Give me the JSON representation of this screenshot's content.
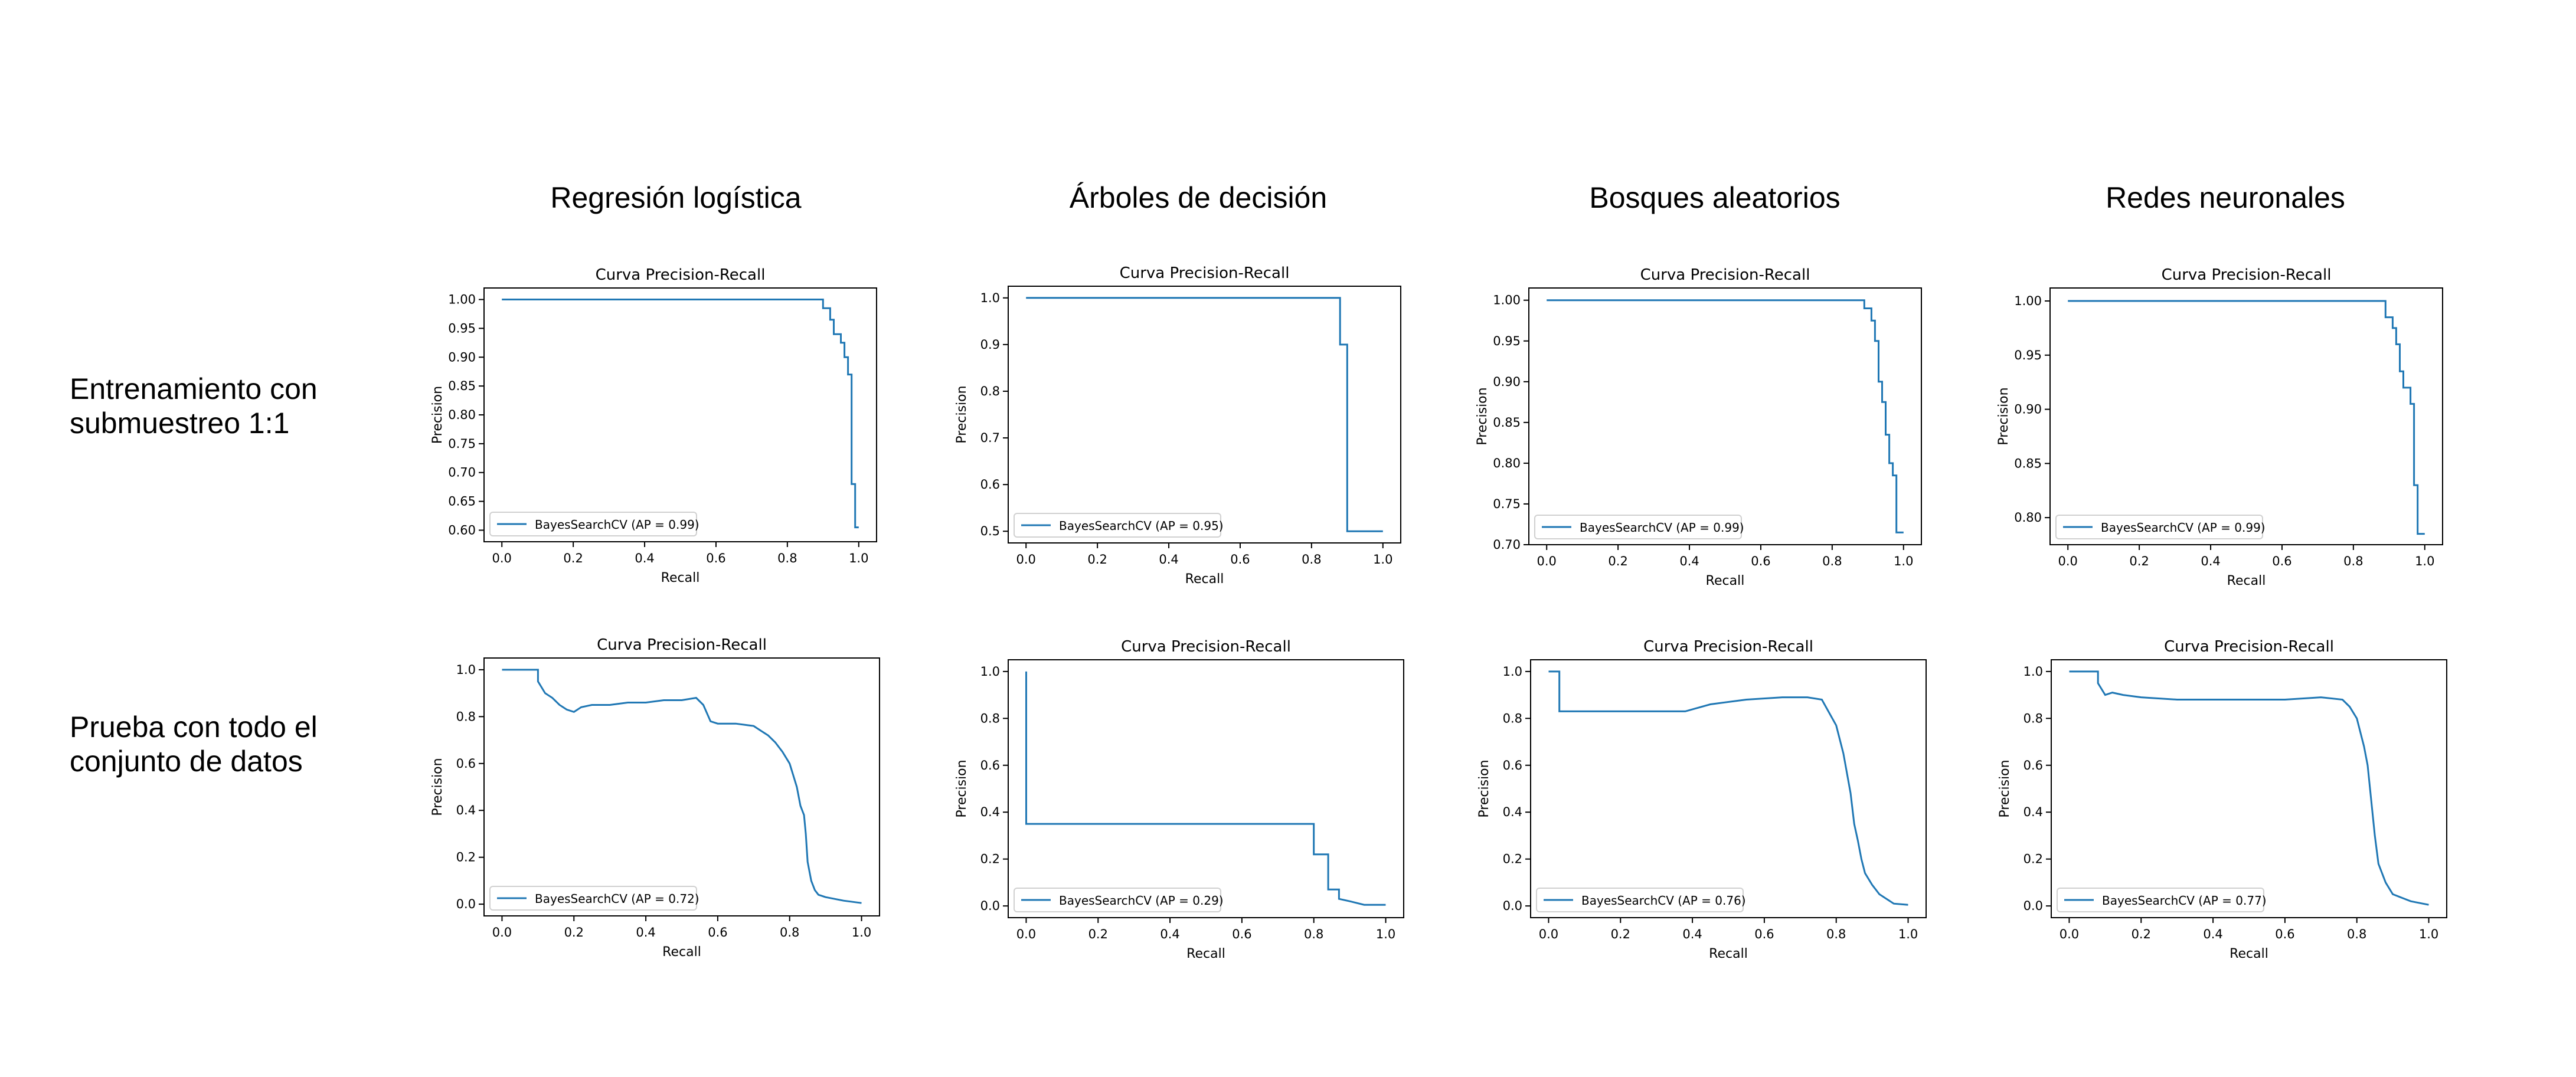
{
  "column_titles": [
    "Regresión logística",
    "Árboles de decisión",
    "Bosques aleatorios",
    "Redes neuronales"
  ],
  "row_labels": [
    "Entrenamiento con\nsubmuestreo 1:1",
    "Prueba con todo el\nconjunto de datos"
  ],
  "colors": {
    "series": "#1f77b4"
  },
  "chart_data": [
    {
      "type": "line",
      "title": "Curva Precision-Recall",
      "xlabel": "Recall",
      "ylabel": "Precision",
      "xlim": [
        -0.05,
        1.05
      ],
      "ylim": [
        0.58,
        1.02
      ],
      "xticks": [
        "0.0",
        "0.2",
        "0.4",
        "0.6",
        "0.8",
        "1.0"
      ],
      "yticks": [
        "0.60",
        "0.65",
        "0.70",
        "0.75",
        "0.80",
        "0.85",
        "0.90",
        "0.95",
        "1.00"
      ],
      "legend_position": "lower-left",
      "grid": false,
      "series": [
        {
          "name": "BayesSearchCV (AP = 0.99)",
          "x": [
            0,
            0.9,
            0.9,
            0.92,
            0.92,
            0.93,
            0.93,
            0.95,
            0.95,
            0.96,
            0.96,
            0.97,
            0.97,
            0.98,
            0.98,
            0.99,
            0.99,
            1.0
          ],
          "y": [
            1.0,
            1.0,
            0.985,
            0.985,
            0.965,
            0.965,
            0.94,
            0.94,
            0.925,
            0.925,
            0.9,
            0.9,
            0.87,
            0.87,
            0.68,
            0.68,
            0.605,
            0.605
          ]
        }
      ]
    },
    {
      "type": "line",
      "title": "Curva Precision-Recall",
      "xlabel": "Recall",
      "ylabel": "Precision",
      "xlim": [
        -0.05,
        1.05
      ],
      "ylim": [
        0.475,
        1.025
      ],
      "xticks": [
        "0.0",
        "0.2",
        "0.4",
        "0.6",
        "0.8",
        "1.0"
      ],
      "yticks": [
        "0.5",
        "0.6",
        "0.7",
        "0.8",
        "0.9",
        "1.0"
      ],
      "legend_position": "lower-left",
      "grid": false,
      "series": [
        {
          "name": "BayesSearchCV (AP = 0.95)",
          "x": [
            0,
            0.88,
            0.88,
            0.9,
            0.9,
            1.0
          ],
          "y": [
            1.0,
            1.0,
            0.9,
            0.9,
            0.5,
            0.5
          ]
        }
      ]
    },
    {
      "type": "line",
      "title": "Curva Precision-Recall",
      "xlabel": "Recall",
      "ylabel": "Precision",
      "xlim": [
        -0.05,
        1.05
      ],
      "ylim": [
        0.7,
        1.015
      ],
      "xticks": [
        "0.0",
        "0.2",
        "0.4",
        "0.6",
        "0.8",
        "1.0"
      ],
      "yticks": [
        "0.70",
        "0.75",
        "0.80",
        "0.85",
        "0.90",
        "0.95",
        "1.00"
      ],
      "legend_position": "lower-left",
      "grid": false,
      "series": [
        {
          "name": "BayesSearchCV (AP = 0.99)",
          "x": [
            0,
            0.89,
            0.89,
            0.91,
            0.91,
            0.92,
            0.92,
            0.93,
            0.93,
            0.94,
            0.94,
            0.95,
            0.95,
            0.96,
            0.96,
            0.97,
            0.97,
            0.98,
            0.98,
            0.99,
            0.99,
            1.0
          ],
          "y": [
            1.0,
            1.0,
            0.99,
            0.99,
            0.975,
            0.975,
            0.95,
            0.95,
            0.9,
            0.9,
            0.875,
            0.875,
            0.835,
            0.835,
            0.8,
            0.8,
            0.785,
            0.785,
            0.715,
            0.715,
            0.715,
            0.715
          ]
        }
      ]
    },
    {
      "type": "line",
      "title": "Curva Precision-Recall",
      "xlabel": "Recall",
      "ylabel": "Precision",
      "xlim": [
        -0.05,
        1.05
      ],
      "ylim": [
        0.775,
        1.012
      ],
      "xticks": [
        "0.0",
        "0.2",
        "0.4",
        "0.6",
        "0.8",
        "1.0"
      ],
      "yticks": [
        "0.80",
        "0.85",
        "0.90",
        "0.95",
        "1.00"
      ],
      "legend_position": "lower-left",
      "grid": false,
      "series": [
        {
          "name": "BayesSearchCV (AP = 0.99)",
          "x": [
            0,
            0.89,
            0.89,
            0.91,
            0.91,
            0.92,
            0.92,
            0.93,
            0.93,
            0.94,
            0.94,
            0.96,
            0.96,
            0.97,
            0.97,
            0.98,
            0.98,
            0.99,
            0.99,
            1.0
          ],
          "y": [
            1.0,
            1.0,
            0.985,
            0.985,
            0.975,
            0.975,
            0.96,
            0.96,
            0.935,
            0.935,
            0.92,
            0.92,
            0.905,
            0.905,
            0.83,
            0.83,
            0.785,
            0.785,
            0.785,
            0.785
          ]
        }
      ]
    },
    {
      "type": "line",
      "title": "Curva Precision-Recall",
      "xlabel": "Recall",
      "ylabel": "Precision",
      "xlim": [
        -0.05,
        1.05
      ],
      "ylim": [
        -0.05,
        1.05
      ],
      "xticks": [
        "0.0",
        "0.2",
        "0.4",
        "0.6",
        "0.8",
        "1.0"
      ],
      "yticks": [
        "0.0",
        "0.2",
        "0.4",
        "0.6",
        "0.8",
        "1.0"
      ],
      "legend_position": "lower-left",
      "grid": false,
      "series": [
        {
          "name": "BayesSearchCV (AP = 0.72)",
          "x": [
            0,
            0.1,
            0.1,
            0.12,
            0.14,
            0.16,
            0.18,
            0.2,
            0.22,
            0.25,
            0.3,
            0.35,
            0.4,
            0.45,
            0.5,
            0.54,
            0.56,
            0.58,
            0.6,
            0.65,
            0.7,
            0.72,
            0.74,
            0.76,
            0.78,
            0.8,
            0.81,
            0.82,
            0.83,
            0.84,
            0.845,
            0.85,
            0.86,
            0.87,
            0.88,
            0.9,
            0.95,
            1.0
          ],
          "y": [
            1.0,
            1.0,
            0.95,
            0.9,
            0.88,
            0.85,
            0.83,
            0.82,
            0.84,
            0.85,
            0.85,
            0.86,
            0.86,
            0.87,
            0.87,
            0.88,
            0.85,
            0.78,
            0.77,
            0.77,
            0.76,
            0.74,
            0.72,
            0.69,
            0.65,
            0.6,
            0.55,
            0.5,
            0.42,
            0.38,
            0.3,
            0.18,
            0.1,
            0.06,
            0.04,
            0.03,
            0.015,
            0.005
          ]
        }
      ]
    },
    {
      "type": "line",
      "title": "Curva Precision-Recall",
      "xlabel": "Recall",
      "ylabel": "Precision",
      "xlim": [
        -0.05,
        1.05
      ],
      "ylim": [
        -0.05,
        1.05
      ],
      "xticks": [
        "0.0",
        "0.2",
        "0.4",
        "0.6",
        "0.8",
        "1.0"
      ],
      "yticks": [
        "0.0",
        "0.2",
        "0.4",
        "0.6",
        "0.8",
        "1.0"
      ],
      "legend_position": "lower-left",
      "grid": false,
      "series": [
        {
          "name": "BayesSearchCV (AP = 0.29)",
          "x": [
            0,
            0,
            0.8,
            0.8,
            0.84,
            0.84,
            0.87,
            0.87,
            0.9,
            0.94,
            1.0
          ],
          "y": [
            1.0,
            0.35,
            0.35,
            0.22,
            0.22,
            0.07,
            0.07,
            0.03,
            0.02,
            0.005,
            0.005
          ]
        }
      ]
    },
    {
      "type": "line",
      "title": "Curva Precision-Recall",
      "xlabel": "Recall",
      "ylabel": "Precision",
      "xlim": [
        -0.05,
        1.05
      ],
      "ylim": [
        -0.05,
        1.05
      ],
      "xticks": [
        "0.0",
        "0.2",
        "0.4",
        "0.6",
        "0.8",
        "1.0"
      ],
      "yticks": [
        "0.0",
        "0.2",
        "0.4",
        "0.6",
        "0.8",
        "1.0"
      ],
      "legend_position": "lower-left",
      "grid": false,
      "series": [
        {
          "name": "BayesSearchCV (AP = 0.76)",
          "x": [
            0,
            0.03,
            0.03,
            0.38,
            0.45,
            0.55,
            0.65,
            0.72,
            0.76,
            0.8,
            0.82,
            0.84,
            0.85,
            0.86,
            0.87,
            0.88,
            0.9,
            0.92,
            0.94,
            0.96,
            1.0
          ],
          "y": [
            1.0,
            1.0,
            0.83,
            0.83,
            0.86,
            0.88,
            0.89,
            0.89,
            0.88,
            0.77,
            0.65,
            0.48,
            0.35,
            0.28,
            0.2,
            0.14,
            0.09,
            0.05,
            0.03,
            0.01,
            0.005
          ]
        }
      ]
    },
    {
      "type": "line",
      "title": "Curva Precision-Recall",
      "xlabel": "Recall",
      "ylabel": "Precision",
      "xlim": [
        -0.05,
        1.05
      ],
      "ylim": [
        -0.05,
        1.05
      ],
      "xticks": [
        "0.0",
        "0.2",
        "0.4",
        "0.6",
        "0.8",
        "1.0"
      ],
      "yticks": [
        "0.0",
        "0.2",
        "0.4",
        "0.6",
        "0.8",
        "1.0"
      ],
      "legend_position": "lower-left",
      "grid": false,
      "series": [
        {
          "name": "BayesSearchCV (AP = 0.77)",
          "x": [
            0,
            0.08,
            0.08,
            0.1,
            0.12,
            0.15,
            0.2,
            0.3,
            0.4,
            0.5,
            0.6,
            0.7,
            0.76,
            0.78,
            0.8,
            0.81,
            0.82,
            0.83,
            0.84,
            0.85,
            0.86,
            0.88,
            0.9,
            0.95,
            1.0
          ],
          "y": [
            1.0,
            1.0,
            0.95,
            0.9,
            0.91,
            0.9,
            0.89,
            0.88,
            0.88,
            0.88,
            0.88,
            0.89,
            0.88,
            0.85,
            0.8,
            0.74,
            0.68,
            0.6,
            0.45,
            0.3,
            0.18,
            0.1,
            0.05,
            0.02,
            0.005
          ]
        }
      ]
    }
  ]
}
